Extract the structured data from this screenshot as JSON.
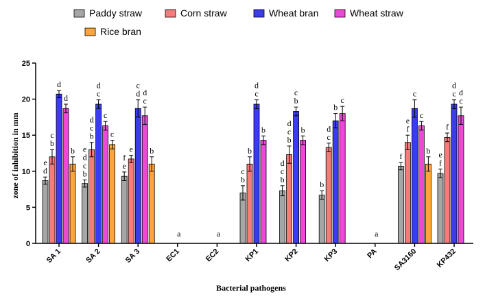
{
  "chart_data": {
    "type": "bar",
    "xlabel": "Bacterial pathogens",
    "ylabel": "zone of inhibition in mm",
    "ylim": [
      0,
      25
    ],
    "yticks": [
      0,
      5,
      10,
      15,
      20,
      25
    ],
    "legend_position": "top",
    "categories": [
      "SA 1",
      "SA 2",
      "SA 3",
      "EC1",
      "EC2",
      "KP1",
      "KP2",
      "KP3",
      "PA",
      "SA3160",
      "KP432"
    ],
    "series": [
      {
        "name": "Paddy straw",
        "color": "#a6a6a6",
        "values": [
          8.7,
          8.3,
          9.3,
          null,
          null,
          7.0,
          7.3,
          6.7,
          null,
          10.7,
          9.7
        ],
        "errors": [
          0.5,
          0.5,
          0.6,
          null,
          null,
          1.0,
          0.7,
          0.6,
          null,
          0.5,
          0.6
        ],
        "labels": [
          [
            "e",
            "d"
          ],
          [
            "e",
            "d",
            "c",
            "b"
          ],
          [
            "f",
            "e"
          ],
          [],
          [],
          [
            "c",
            "b"
          ],
          [
            "d",
            "c",
            "b"
          ],
          [
            "b"
          ],
          [],
          [
            "f"
          ],
          [
            "e",
            "f"
          ]
        ]
      },
      {
        "name": "Corn straw",
        "color": "#f77b7b",
        "values": [
          12.0,
          13.0,
          11.7,
          null,
          null,
          11.0,
          12.3,
          13.3,
          null,
          14.0,
          14.7
        ],
        "errors": [
          1.0,
          1.0,
          0.5,
          null,
          null,
          1.0,
          1.2,
          0.6,
          null,
          1.0,
          0.6
        ],
        "labels": [
          [
            "c",
            "b"
          ],
          [
            "d",
            "c",
            "b"
          ],
          [
            "e"
          ],
          [],
          [],
          [
            "b"
          ],
          [
            "d",
            "c",
            "b"
          ],
          [
            "d",
            "c"
          ],
          [],
          [
            "e",
            "f"
          ],
          [
            "f"
          ]
        ]
      },
      {
        "name": "Wheat bran",
        "color": "#3b3bf0",
        "values": [
          20.7,
          19.3,
          18.7,
          null,
          null,
          19.3,
          18.3,
          17.0,
          null,
          18.7,
          19.3
        ],
        "errors": [
          0.5,
          0.6,
          1.2,
          null,
          null,
          0.6,
          0.6,
          1.0,
          null,
          1.2,
          0.6
        ],
        "labels": [
          [
            "d"
          ],
          [
            "d",
            "c"
          ],
          [
            "c",
            "d"
          ],
          [],
          [],
          [
            "d",
            "c"
          ],
          [
            "c",
            "b"
          ],
          [
            "b"
          ],
          [],
          [
            "c"
          ],
          [
            "d",
            "c"
          ]
        ]
      },
      {
        "name": "Wheat straw",
        "color": "#ee48d8",
        "values": [
          18.7,
          16.3,
          17.7,
          null,
          null,
          14.3,
          14.3,
          18.0,
          null,
          16.3,
          17.7
        ],
        "errors": [
          0.6,
          0.6,
          1.2,
          null,
          null,
          0.6,
          0.6,
          1.0,
          null,
          0.6,
          1.2
        ],
        "labels": [
          [
            "d"
          ],
          [
            "c"
          ],
          [
            "d",
            "c"
          ],
          [],
          [],
          [
            "b"
          ],
          [
            "b"
          ],
          [
            "c"
          ],
          [],
          [
            "c"
          ],
          [
            "d",
            "c"
          ]
        ]
      },
      {
        "name": "Rice bran",
        "color": "#ffa53a",
        "values": [
          11.0,
          13.7,
          11.0,
          null,
          null,
          null,
          null,
          null,
          null,
          11.0,
          null
        ],
        "errors": [
          1.0,
          0.6,
          1.0,
          null,
          null,
          null,
          null,
          null,
          null,
          1.0,
          null
        ],
        "labels": [
          [
            "b"
          ],
          [
            "c"
          ],
          [
            "b"
          ],
          [],
          [],
          [],
          [],
          [],
          [],
          [
            "b"
          ],
          []
        ]
      }
    ],
    "category_labels": [
      {
        "category": "EC1",
        "text": "a"
      },
      {
        "category": "EC2",
        "text": "a"
      },
      {
        "category": "PA",
        "text": "a"
      }
    ]
  }
}
